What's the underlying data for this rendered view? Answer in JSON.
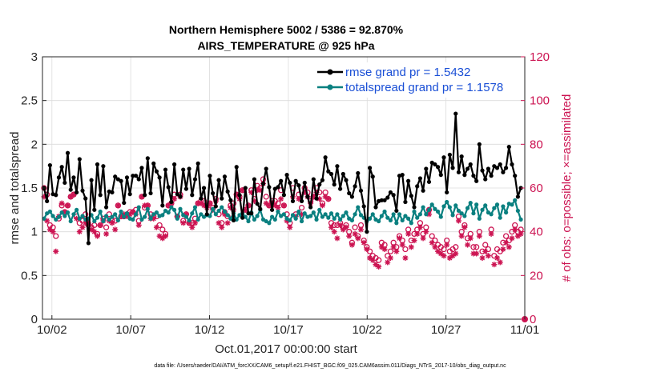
{
  "chart_data": {
    "type": "line",
    "title_line1": "Northern Hemisphere 5002 / 5386 = 92.870%",
    "title_line2": "AIRS_TEMPERATURE @ 925 hPa",
    "ylabel_left": "rmse and totalspread",
    "ylabel_right": "# of obs: o=possible; ×=assimilated",
    "xlabel": "Oct.01,2017 00:00:00 start",
    "footnote": "data file: /Users/raeder/DAI/ATM_forcXX/CAM6_setup/f.e21.FHIST_BGC.f09_025.CAM6assim.011/Diags_NTrS_2017-10/obs_diag_output.nc",
    "ylim_left": [
      0,
      3
    ],
    "ylim_right": [
      0,
      120
    ],
    "xlim_days": [
      0.4,
      31.0
    ],
    "x_tick_labels": [
      "10/02",
      "10/07",
      "10/12",
      "10/17",
      "10/22",
      "10/27",
      "11/01"
    ],
    "x_tick_days": [
      1,
      6,
      11,
      16,
      21,
      26,
      31
    ],
    "y_left_ticks": [
      "0",
      "0.5",
      "1",
      "1.5",
      "2",
      "2.5",
      "3"
    ],
    "y_right_ticks": [
      "0",
      "20",
      "40",
      "60",
      "80",
      "100",
      "120"
    ],
    "grid": true,
    "legend_location": "top-right",
    "colors": {
      "rmse": "#000000",
      "totalspread": "#0a8080",
      "obs": "#cc1452",
      "legend_text": "#1a4fd6"
    },
    "series": [
      {
        "name": "rmse grand pr = 1.5432",
        "axis": "left",
        "values": [
          1.5,
          1.35,
          1.76,
          1.43,
          1.42,
          1.62,
          1.74,
          1.56,
          1.9,
          1.48,
          1.62,
          1.45,
          1.83,
          1.47,
          1.38,
          0.87,
          1.59,
          1.25,
          1.77,
          1.42,
          1.75,
          1.28,
          1.46,
          1.45,
          1.63,
          1.6,
          1.58,
          1.33,
          1.62,
          1.43,
          1.64,
          1.64,
          1.6,
          1.73,
          1.42,
          1.84,
          1.44,
          1.78,
          1.69,
          1.62,
          1.3,
          1.71,
          1.51,
          1.34,
          1.77,
          1.43,
          1.4,
          1.71,
          1.49,
          1.72,
          1.42,
          1.6,
          1.78,
          1.38,
          1.5,
          1.2,
          1.64,
          1.44,
          1.29,
          1.59,
          1.38,
          1.63,
          1.46,
          1.36,
          1.13,
          1.74,
          1.42,
          1.16,
          1.5,
          1.21,
          1.21,
          1.6,
          1.32,
          1.26,
          1.55,
          1.72,
          1.51,
          1.25,
          1.49,
          1.51,
          1.58,
          1.42,
          1.65,
          1.56,
          1.35,
          1.58,
          1.53,
          1.35,
          1.56,
          1.4,
          1.28,
          1.6,
          1.38,
          1.54,
          1.59,
          1.85,
          1.69,
          1.66,
          1.54,
          1.75,
          1.49,
          1.66,
          1.59,
          1.44,
          1.4,
          1.52,
          1.67,
          1.47,
          1.29,
          1.0,
          1.73,
          1.63,
          1.28,
          1.35,
          1.36,
          1.36,
          1.39,
          1.45,
          1.42,
          1.24,
          1.64,
          1.65,
          1.34,
          1.58,
          1.41,
          1.28,
          1.52,
          1.61,
          1.47,
          1.72,
          1.57,
          1.79,
          1.77,
          1.74,
          1.65,
          1.85,
          1.45,
          1.88,
          1.73,
          2.35,
          1.68,
          1.86,
          1.65,
          1.72,
          1.77,
          1.64,
          1.58,
          2.0,
          1.7,
          1.6,
          1.72,
          1.64,
          1.75,
          1.73,
          1.77,
          1.68,
          1.73,
          1.97,
          1.77,
          1.64,
          1.4,
          1.5
        ]
      },
      {
        "name": "totalspread grand pr = 1.1578",
        "axis": "left",
        "values": [
          1.15,
          1.21,
          1.23,
          1.18,
          1.14,
          1.17,
          1.22,
          1.18,
          1.22,
          1.12,
          1.2,
          1.25,
          1.15,
          1.18,
          1.14,
          1.15,
          1.19,
          1.12,
          1.16,
          1.23,
          1.12,
          1.18,
          1.14,
          1.17,
          1.2,
          1.13,
          1.23,
          1.17,
          1.21,
          1.15,
          1.14,
          1.2,
          1.28,
          1.14,
          1.17,
          1.26,
          1.15,
          1.2,
          1.22,
          1.18,
          1.19,
          1.24,
          1.22,
          1.28,
          1.25,
          1.15,
          1.26,
          1.19,
          1.17,
          1.13,
          1.21,
          1.28,
          1.14,
          1.2,
          1.17,
          1.19,
          1.18,
          1.26,
          1.2,
          1.24,
          1.28,
          1.23,
          1.19,
          1.15,
          1.21,
          1.14,
          1.19,
          1.21,
          1.17,
          1.12,
          1.22,
          1.14,
          1.18,
          1.25,
          1.14,
          1.12,
          1.1,
          1.17,
          1.14,
          1.23,
          1.18,
          1.2,
          1.15,
          1.13,
          1.19,
          1.15,
          1.23,
          1.12,
          1.21,
          1.17,
          1.18,
          1.22,
          1.14,
          1.25,
          1.17,
          1.2,
          1.16,
          1.21,
          1.15,
          1.2,
          1.14,
          1.18,
          1.22,
          1.15,
          1.13,
          1.2,
          1.28,
          1.19,
          1.16,
          1.12,
          1.15,
          1.2,
          1.14,
          1.12,
          1.18,
          1.23,
          1.16,
          1.13,
          1.2,
          1.1,
          1.2,
          1.13,
          1.18,
          1.15,
          1.1,
          1.23,
          1.16,
          1.2,
          1.28,
          1.2,
          1.25,
          1.31,
          1.26,
          1.23,
          1.17,
          1.29,
          1.34,
          1.28,
          1.19,
          1.3,
          1.24,
          1.21,
          1.18,
          1.27,
          1.33,
          1.21,
          1.31,
          1.15,
          1.25,
          1.3,
          1.22,
          1.2,
          1.27,
          1.31,
          1.16,
          1.29,
          1.22,
          1.32,
          1.31,
          1.36,
          1.24,
          1.14
        ]
      },
      {
        "name": "possible",
        "axis": "right",
        "values": [
          60,
          57,
          43,
          42,
          38,
          46,
          52,
          49,
          52,
          56,
          57,
          47,
          44,
          45,
          48,
          43,
          42,
          43,
          39,
          43,
          46,
          42,
          48,
          45,
          45,
          52,
          47,
          47,
          48,
          49,
          49,
          50,
          45,
          56,
          51,
          52,
          48,
          47,
          47,
          43,
          41,
          39,
          52,
          53,
          57,
          47,
          57,
          45,
          48,
          44,
          44,
          46,
          53,
          54,
          54,
          52,
          53,
          51,
          55,
          48,
          44,
          49,
          47,
          52,
          53,
          57,
          56,
          59,
          50,
          52,
          59,
          55,
          61,
          60,
          64,
          56,
          52,
          54,
          54,
          53,
          59,
          52,
          48,
          44,
          60,
          48,
          57,
          51,
          60,
          58,
          54,
          56,
          60,
          58,
          53,
          58,
          55,
          44,
          43,
          43,
          44,
          42,
          43,
          40,
          35,
          42,
          38,
          43,
          36,
          33,
          31,
          29,
          28,
          27,
          35,
          34,
          29,
          31,
          35,
          33,
          38,
          36,
          32,
          41,
          36,
          39,
          41,
          44,
          39,
          42,
          50,
          38,
          36,
          34,
          33,
          32,
          36,
          31,
          32,
          33,
          47,
          40,
          43,
          37,
          39,
          33,
          33,
          40,
          31,
          34,
          32,
          41,
          29,
          32,
          31,
          35,
          38,
          36,
          40,
          43,
          40,
          41
        ]
      },
      {
        "name": "assimilated",
        "axis": "right",
        "values": [
          56,
          45,
          41,
          40,
          31,
          47,
          53,
          49,
          52,
          56,
          57,
          46,
          40,
          42,
          44,
          44,
          41,
          40,
          38,
          43,
          45,
          39,
          45,
          44,
          41,
          52,
          47,
          48,
          47,
          48,
          49,
          48,
          43,
          56,
          52,
          52,
          46,
          46,
          42,
          38,
          37,
          38,
          52,
          53,
          55,
          47,
          56,
          44,
          48,
          44,
          42,
          44,
          53,
          53,
          52,
          51,
          53,
          50,
          54,
          44,
          42,
          48,
          44,
          51,
          50,
          57,
          55,
          59,
          50,
          52,
          58,
          54,
          59,
          59,
          62,
          53,
          52,
          53,
          52,
          51,
          55,
          52,
          45,
          42,
          56,
          47,
          55,
          48,
          58,
          56,
          53,
          56,
          58,
          55,
          52,
          56,
          55,
          42,
          40,
          37,
          43,
          41,
          42,
          38,
          34,
          39,
          37,
          41,
          35,
          32,
          28,
          27,
          25,
          24,
          33,
          32,
          26,
          28,
          33,
          31,
          37,
          34,
          28,
          39,
          33,
          36,
          39,
          42,
          37,
          40,
          48,
          35,
          33,
          31,
          30,
          29,
          34,
          28,
          29,
          30,
          45,
          38,
          42,
          34,
          37,
          30,
          30,
          38,
          28,
          31,
          29,
          39,
          25,
          28,
          26,
          32,
          35,
          33,
          37,
          41,
          38,
          39
        ]
      }
    ]
  }
}
